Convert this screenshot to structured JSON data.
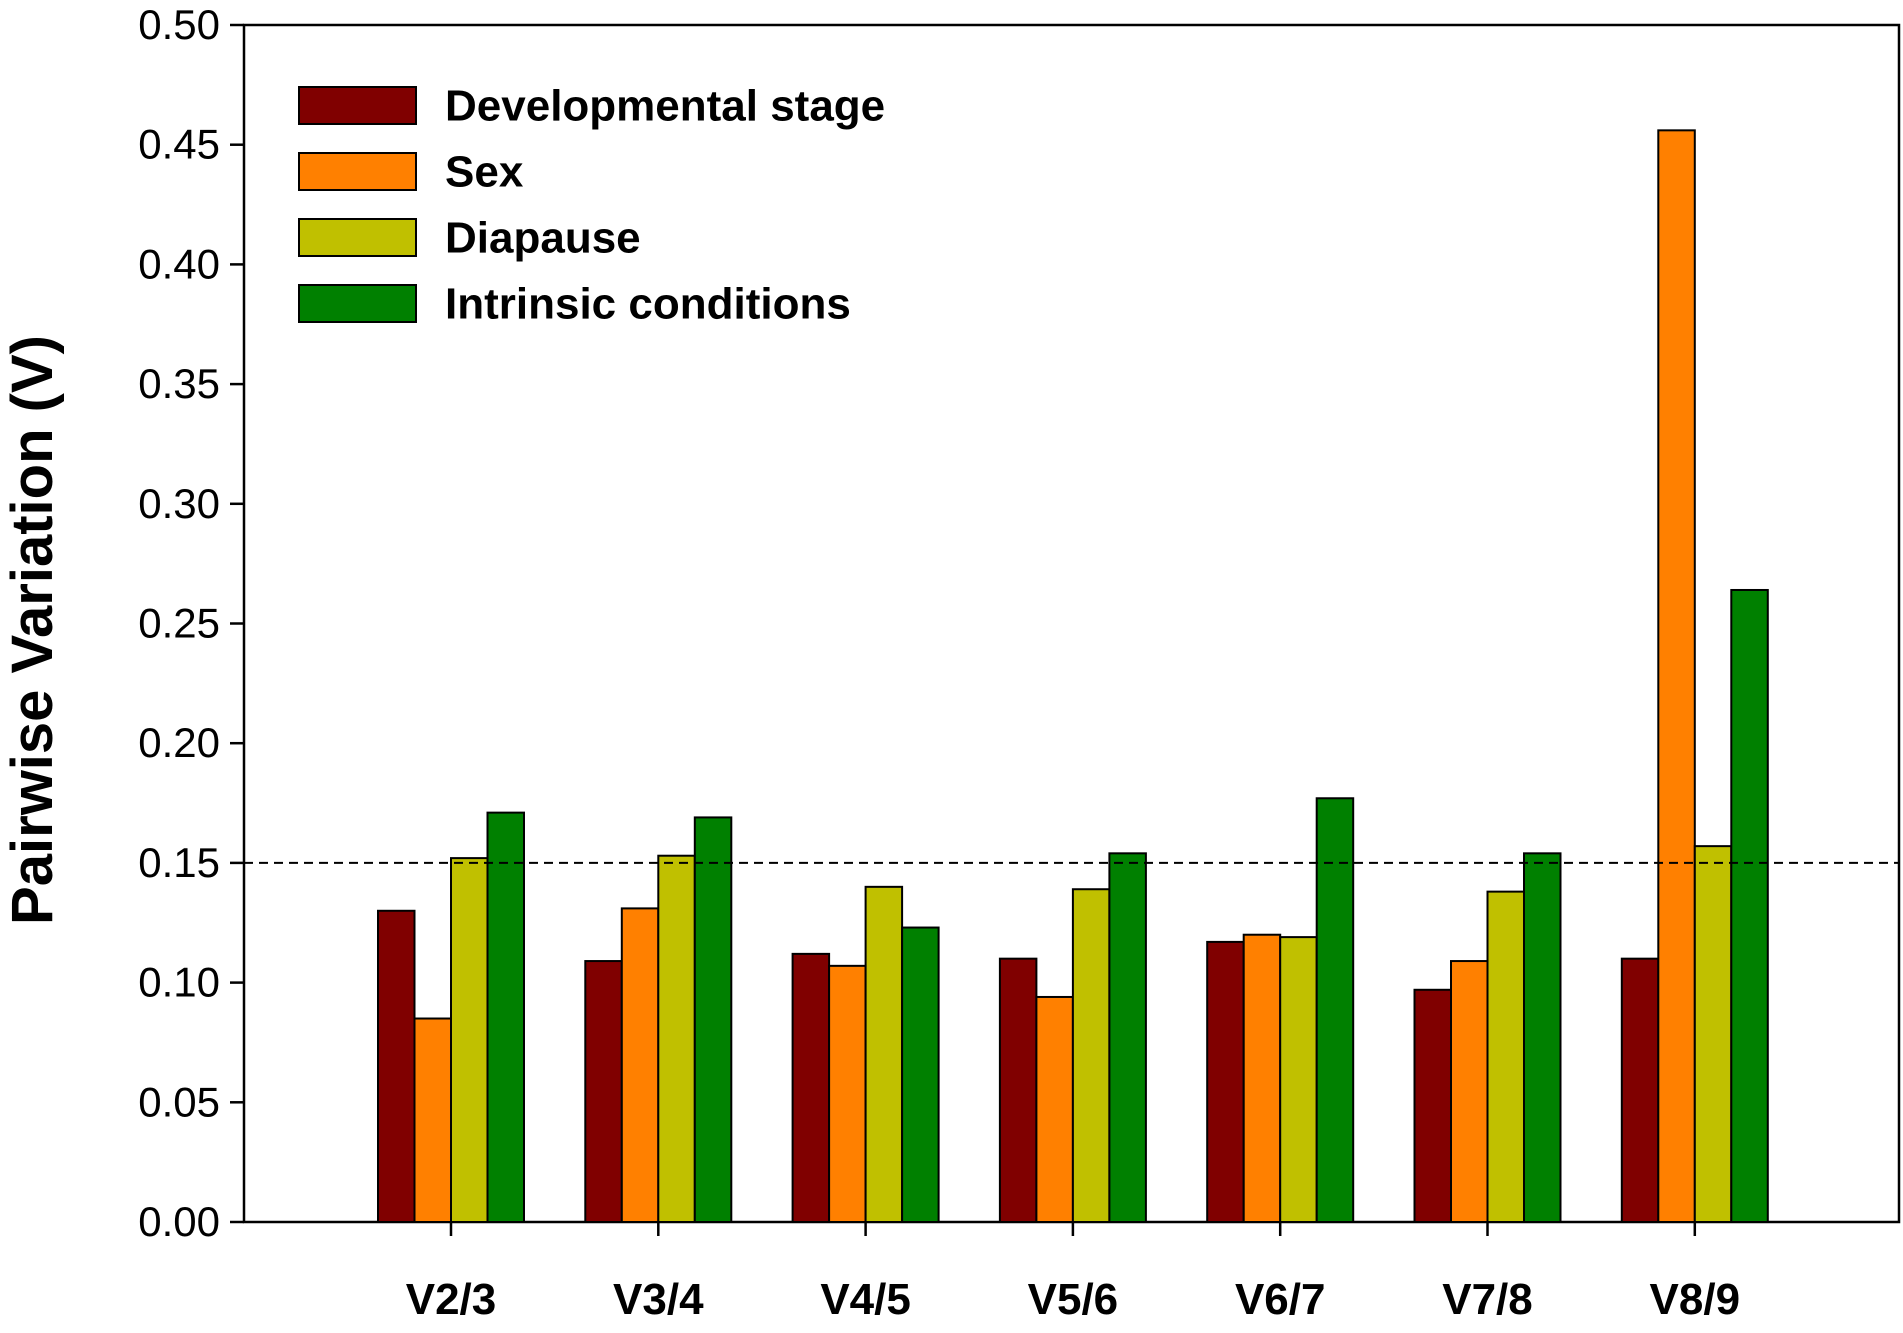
{
  "chart_data": {
    "type": "bar",
    "title": "",
    "xlabel": "",
    "ylabel": "Pairwise Variation (V)",
    "ylim": [
      0,
      0.5
    ],
    "ytick_step": 0.05,
    "categories": [
      "V2/3",
      "V3/4",
      "V4/5",
      "V5/6",
      "V6/7",
      "V7/8",
      "V8/9"
    ],
    "series": [
      {
        "name": "Developmental stage",
        "color": "#800000",
        "values": [
          0.13,
          0.109,
          0.112,
          0.11,
          0.117,
          0.097,
          0.11
        ]
      },
      {
        "name": "Sex",
        "color": "#ff8000",
        "values": [
          0.085,
          0.131,
          0.107,
          0.094,
          0.12,
          0.109,
          0.456
        ]
      },
      {
        "name": "Diapause",
        "color": "#c0c000",
        "values": [
          0.152,
          0.153,
          0.14,
          0.139,
          0.119,
          0.138,
          0.157
        ]
      },
      {
        "name": "Intrinsic conditions",
        "color": "#008000",
        "values": [
          0.171,
          0.169,
          0.123,
          0.154,
          0.177,
          0.154,
          0.264
        ]
      }
    ],
    "reference_line": {
      "value": 0.15,
      "style": "dashed"
    },
    "legend": "top-left",
    "grid": false
  }
}
